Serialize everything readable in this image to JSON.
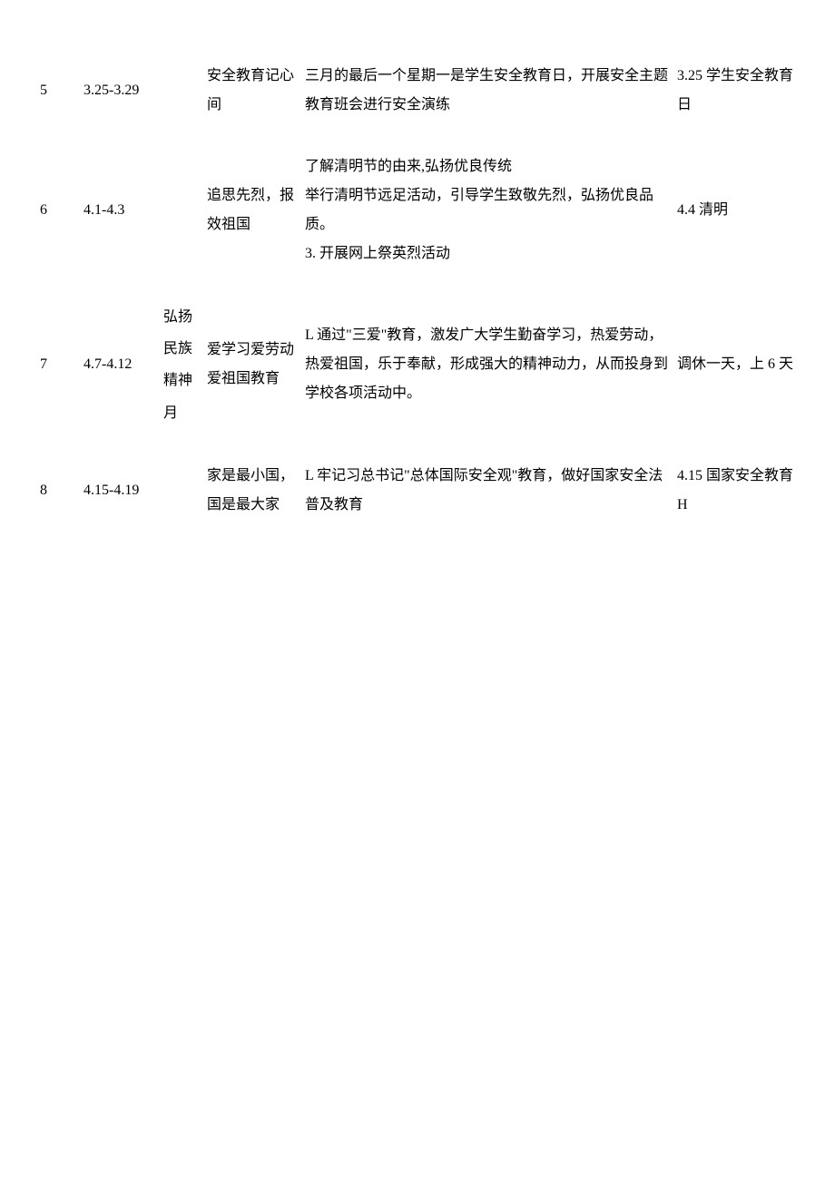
{
  "rows": [
    {
      "num": "5",
      "date": "3.25-3.29",
      "month": "",
      "theme": "安全教育记心间",
      "content": "三月的最后一个星期一是学生安全教育日，开展安全主题教育班会进行安全演练",
      "note": "3.25 学生安全教育日"
    },
    {
      "num": "6",
      "date": "4.1-4.3",
      "month": "",
      "theme": "追思先烈，报效祖国",
      "content": "了解清明节的由来,弘扬优良传统\n举行清明节远足活动，引导学生致敬先烈，弘扬优良品质。\n3. 开展网上祭英烈活动",
      "note": "4.4 清明"
    },
    {
      "num": "7",
      "date": "4.7-4.12",
      "month": "弘扬民族精神月",
      "theme": "爱学习爱劳动爱祖国教育",
      "content": "L 通过\"三爱\"教育，激发广大学生勤奋学习，热爱劳动，热爱祖国，乐于奉献，形成强大的精神动力，从而投身到学校各项活动中。",
      "note": "调休一天，上 6 天"
    },
    {
      "num": "8",
      "date": "4.15-4.19",
      "month": "",
      "theme": "家是最小国，国是最大家",
      "content": "L 牢记习总书记\"总体国际安全观\"教育，做好国家安全法普及教育",
      "note": "4.15 国家安全教育 H"
    }
  ]
}
